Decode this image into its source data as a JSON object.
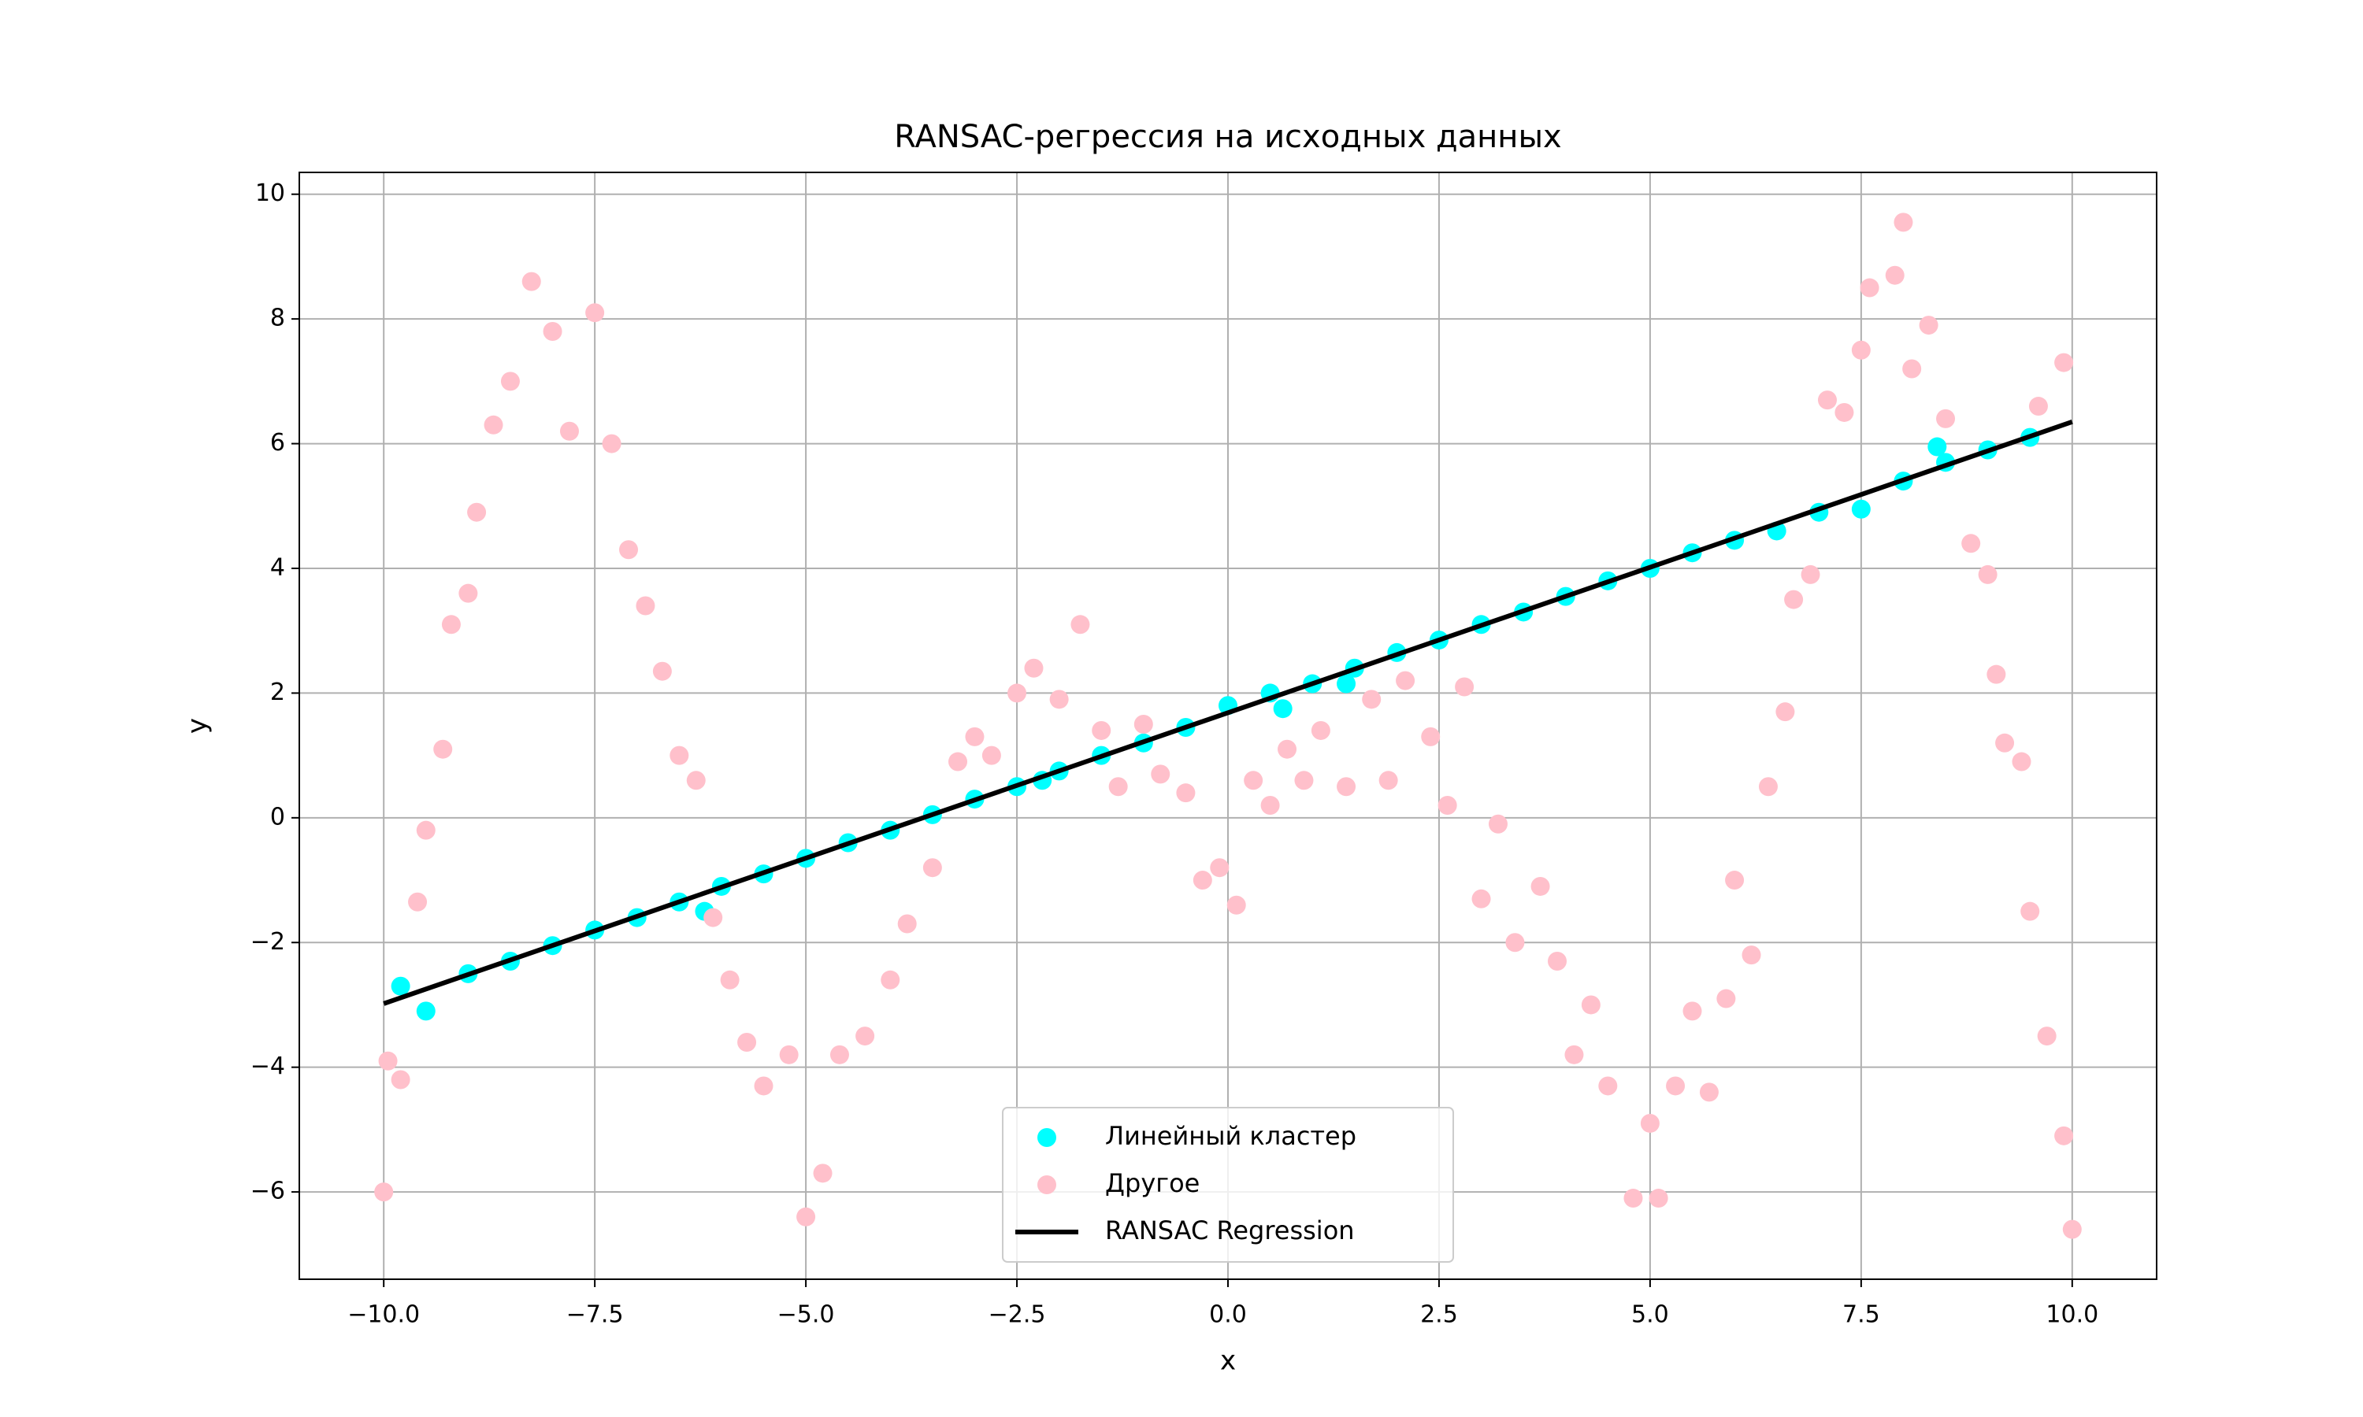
{
  "chart_data": {
    "type": "scatter",
    "title": "RANSAC-регрессия на исходных данных",
    "x_label": "x",
    "y_label": "y",
    "xlim": [
      -11,
      11
    ],
    "ylim": [
      -7.4,
      10.35
    ],
    "xticks": [
      {
        "value": -10,
        "label": "−10.0"
      },
      {
        "value": -7.5,
        "label": "−7.5"
      },
      {
        "value": -5,
        "label": "−5.0"
      },
      {
        "value": -2.5,
        "label": "−2.5"
      },
      {
        "value": 0,
        "label": "0.0"
      },
      {
        "value": 2.5,
        "label": "2.5"
      },
      {
        "value": 5,
        "label": "5.0"
      },
      {
        "value": 7.5,
        "label": "7.5"
      },
      {
        "value": 10,
        "label": "10.0"
      }
    ],
    "yticks": [
      {
        "value": -6,
        "label": "−6"
      },
      {
        "value": -4,
        "label": "−4"
      },
      {
        "value": -2,
        "label": "−2"
      },
      0,
      2,
      4,
      6,
      8,
      10
    ],
    "grid": true,
    "legend": "lower center",
    "series": [
      {
        "name": "Линейный кластер",
        "type": "scatter",
        "color": "#00ffff",
        "x": [
          -9.8,
          -9.5,
          -9.0,
          -8.5,
          -8.0,
          -7.5,
          -7.0,
          -6.5,
          -6.2,
          -6.0,
          -5.5,
          -5.0,
          -4.5,
          -4.0,
          -3.5,
          -3.0,
          -2.5,
          -2.2,
          -2.0,
          -1.5,
          -1.0,
          -0.5,
          0,
          0.5,
          0.65,
          1.0,
          1.4,
          1.5,
          2.0,
          2.5,
          3.0,
          3.5,
          4.0,
          4.5,
          5.0,
          5.5,
          6.0,
          6.5,
          7.0,
          7.5,
          8.0,
          8.4,
          8.5,
          9.0,
          9.5
        ],
        "values": [
          -2.7,
          -3.1,
          -2.5,
          -2.3,
          -2.05,
          -1.8,
          -1.6,
          -1.35,
          -1.5,
          -1.1,
          -0.9,
          -0.65,
          -0.4,
          -0.2,
          0.05,
          0.3,
          0.5,
          0.6,
          0.75,
          1.0,
          1.2,
          1.45,
          1.8,
          2.0,
          1.75,
          2.15,
          2.15,
          2.4,
          2.65,
          2.85,
          3.1,
          3.3,
          3.55,
          3.8,
          4.0,
          4.25,
          4.45,
          4.6,
          4.9,
          4.95,
          5.4,
          5.95,
          5.7,
          5.9,
          6.1
        ]
      },
      {
        "name": "Другое",
        "type": "scatter",
        "color": "#ffc0cb",
        "x": [
          -10.0,
          -9.95,
          -9.8,
          -9.6,
          -9.5,
          -9.3,
          -9.2,
          -9.0,
          -8.9,
          -8.7,
          -8.5,
          -8.25,
          -8.0,
          -7.8,
          -7.5,
          -7.3,
          -7.1,
          -6.9,
          -6.7,
          -6.5,
          -6.3,
          -6.1,
          -5.9,
          -5.7,
          -5.5,
          -5.2,
          -5.0,
          -4.8,
          -4.6,
          -4.3,
          -4.0,
          -3.8,
          -3.5,
          -3.2,
          -3.0,
          -2.8,
          -2.5,
          -2.3,
          -2.0,
          -1.75,
          -1.5,
          -1.3,
          -1.0,
          -0.8,
          -0.5,
          -0.3,
          -0.1,
          0.1,
          0.3,
          0.5,
          0.7,
          0.9,
          1.1,
          1.4,
          1.7,
          1.9,
          2.1,
          2.4,
          2.6,
          2.8,
          3.0,
          3.2,
          3.4,
          3.7,
          3.9,
          4.1,
          4.3,
          4.5,
          4.8,
          5.0,
          5.1,
          5.3,
          5.5,
          5.7,
          5.9,
          6.0,
          6.2,
          6.4,
          6.6,
          6.7,
          6.9,
          7.1,
          7.3,
          7.5,
          7.6,
          7.9,
          8.0,
          8.1,
          8.3,
          8.5,
          8.8,
          9.0,
          9.1,
          9.2,
          9.4,
          9.5,
          9.6,
          9.7,
          9.9,
          9.9,
          10.0
        ],
        "values": [
          -6.0,
          -3.9,
          -4.2,
          -1.35,
          -0.2,
          1.1,
          3.1,
          3.6,
          4.9,
          6.3,
          7.0,
          8.6,
          7.8,
          6.2,
          8.1,
          6.0,
          4.3,
          3.4,
          2.35,
          1.0,
          0.6,
          -1.6,
          -2.6,
          -3.6,
          -4.3,
          -3.8,
          -6.4,
          -5.7,
          -3.8,
          -3.5,
          -2.6,
          -1.7,
          -0.8,
          0.9,
          1.3,
          1.0,
          2.0,
          2.4,
          1.9,
          3.1,
          1.4,
          0.5,
          1.5,
          0.7,
          0.4,
          -1.0,
          -0.8,
          -1.4,
          0.6,
          0.2,
          1.1,
          0.6,
          1.4,
          0.5,
          1.9,
          0.6,
          2.2,
          1.3,
          0.2,
          2.1,
          -1.3,
          -0.1,
          -2.0,
          -1.1,
          -2.3,
          -3.8,
          -3.0,
          -4.3,
          -6.1,
          -4.9,
          -6.1,
          -4.3,
          -3.1,
          -4.4,
          -2.9,
          -1.0,
          -2.2,
          0.5,
          1.7,
          3.5,
          3.9,
          6.7,
          6.5,
          7.5,
          8.5,
          8.7,
          9.55,
          7.2,
          7.9,
          6.4,
          4.4,
          3.9,
          2.3,
          1.2,
          0.9,
          -1.5,
          6.6,
          -3.5,
          -5.1,
          7.3,
          -6.6
        ]
      },
      {
        "name": "RANSAC Regression",
        "type": "line",
        "color": "#000000",
        "x": [
          -10,
          10
        ],
        "values": [
          -2.98,
          6.35
        ]
      }
    ]
  }
}
